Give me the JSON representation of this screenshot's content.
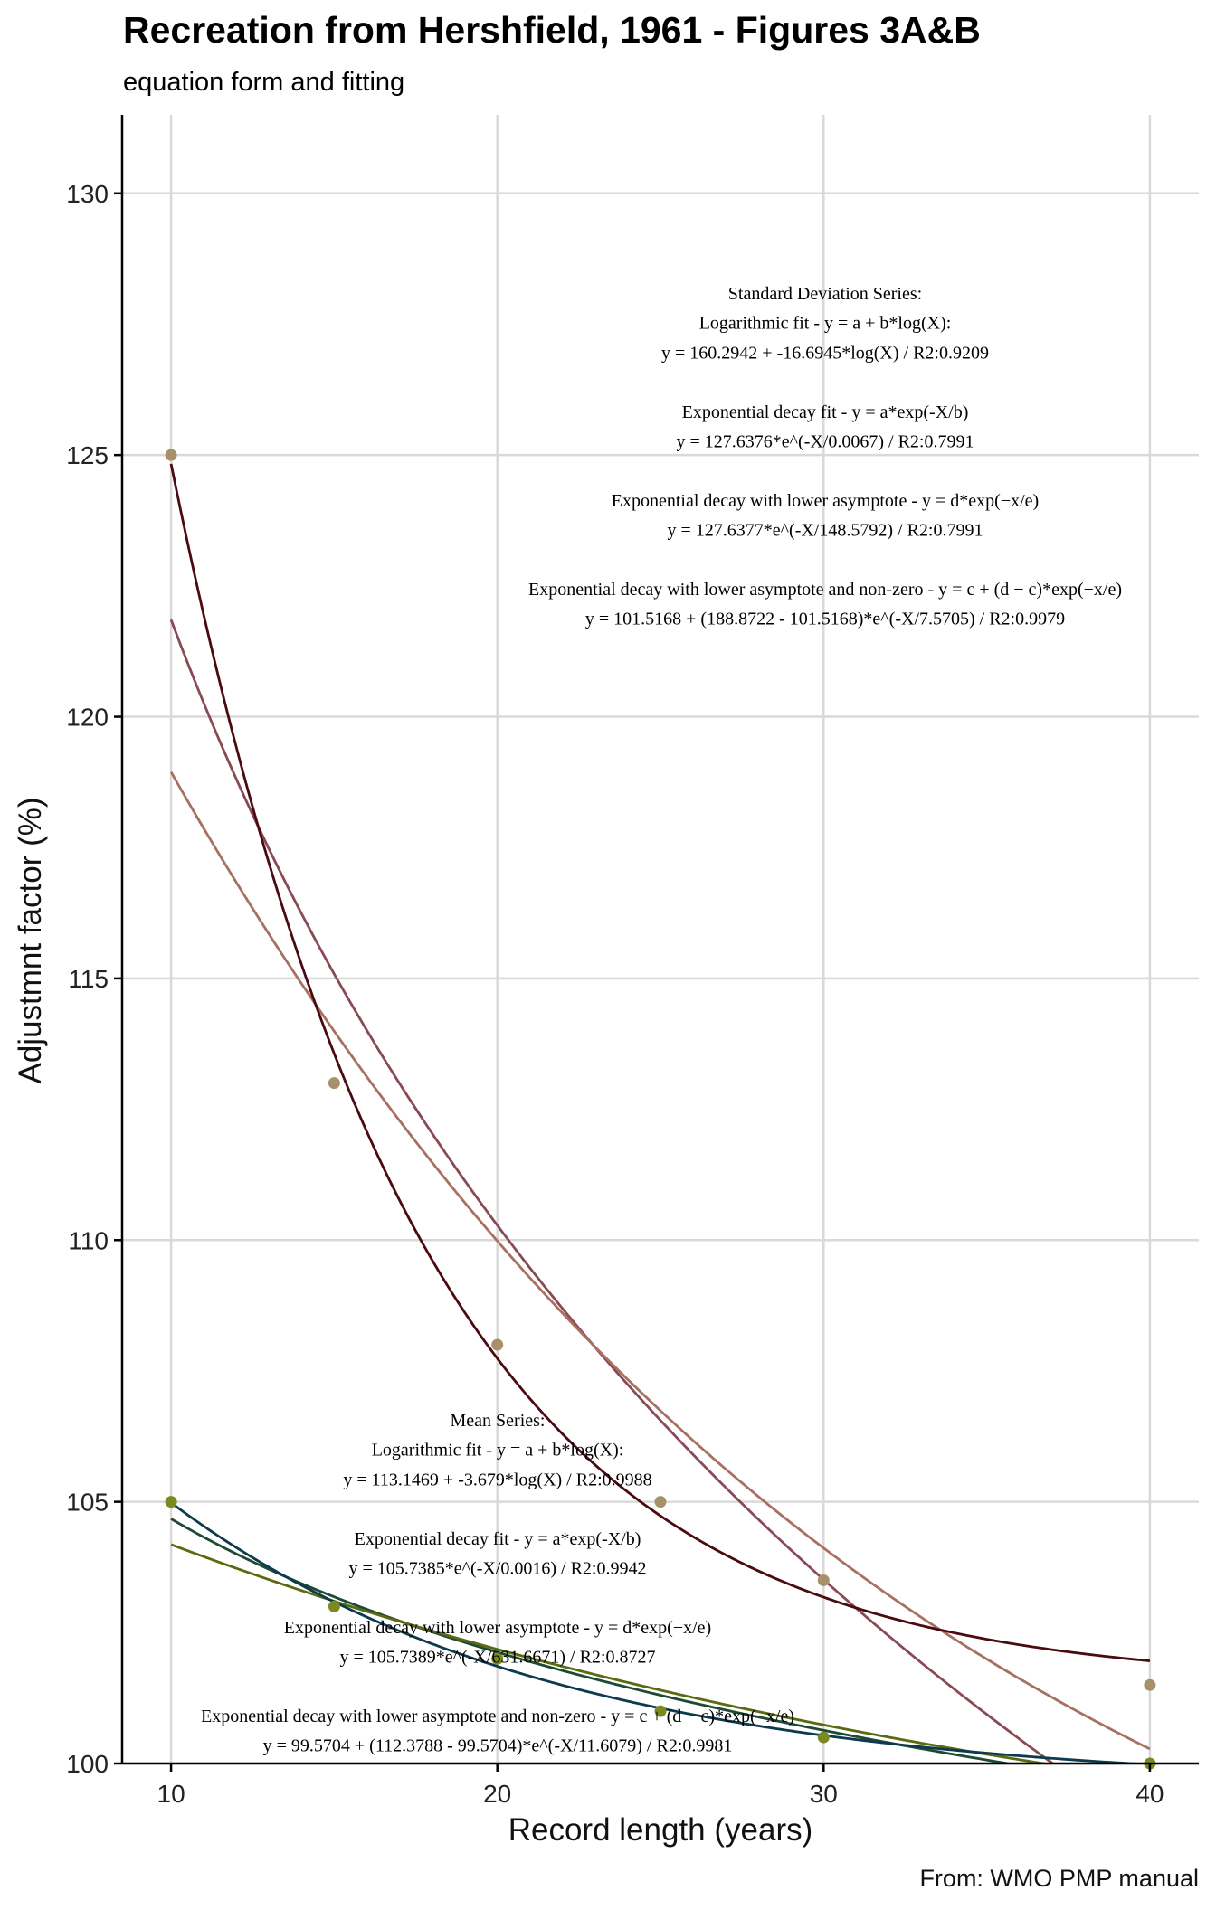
{
  "chart_data": {
    "type": "scatter",
    "title": "Recreation from Hershfield, 1961 - Figures 3A&B",
    "subtitle": "equation form and fitting",
    "xlabel": "Record length (years)",
    "ylabel": "Adjustmnt factor (%)",
    "caption": "From: WMO PMP manual",
    "xlim": [
      8.5,
      41.5
    ],
    "ylim": [
      100,
      131.5
    ],
    "x_ticks": [
      10,
      20,
      30,
      40
    ],
    "y_ticks": [
      100,
      105,
      110,
      115,
      120,
      125,
      130
    ],
    "grid": true,
    "legend": "none",
    "series": [
      {
        "group": "Standard Deviation Series",
        "color": "#a8906a",
        "points": {
          "x": [
            10,
            15,
            20,
            25,
            30,
            40
          ],
          "y": [
            125,
            113,
            108,
            105,
            103.5,
            101.5
          ]
        },
        "fits": [
          {
            "kind": "log",
            "color": "#8a4a55",
            "params": {
              "a": 160.2942,
              "b": -16.6945
            }
          },
          {
            "kind": "exp",
            "color": "#a87060",
            "params": {
              "a": 127.6376,
              "b": 0.0067
            }
          },
          {
            "kind": "asym_nonzero",
            "color": "#4a0a10",
            "params": {
              "c": 101.5168,
              "d": 188.8722,
              "e": 7.5705
            }
          }
        ]
      },
      {
        "group": "Mean Series",
        "color": "#7a8a20",
        "points": {
          "x": [
            10,
            15,
            20,
            25,
            30,
            40
          ],
          "y": [
            105,
            103,
            102,
            101,
            100.5,
            100
          ]
        },
        "fits": [
          {
            "kind": "log",
            "color": "#1e4a34",
            "params": {
              "a": 113.1469,
              "b": -3.679
            }
          },
          {
            "kind": "exp",
            "color": "#5a6a10",
            "params": {
              "a": 105.7385,
              "b": 0.0016
            }
          },
          {
            "kind": "asym_nonzero",
            "color": "#0e3a4e",
            "params": {
              "c": 99.5704,
              "d": 112.3788,
              "e": 11.6079
            }
          }
        ]
      }
    ],
    "annotations": {
      "sd": [
        "Standard Deviation Series:",
        "Logarithmic fit - y = a + b*log(X):",
        "y = 160.2942 + -16.6945*log(X) / R2:0.9209",
        "",
        "Exponential decay fit - y = a*exp(-X/b)",
        "y = 127.6376*e^(-X/0.0067) / R2:0.7991",
        "",
        "Exponential decay with lower asymptote - y = d*exp(−x/e)",
        "y = 127.6377*e^(-X/148.5792) / R2:0.7991",
        "",
        "Exponential decay with lower asymptote and non-zero - y = c + (d − c)*exp(−x/e)",
        "y = 101.5168 + (188.8722 - 101.5168)*e^(-X/7.5705) / R2:0.9979"
      ],
      "mean": [
        "Mean Series:",
        "Logarithmic fit - y = a + b*log(X):",
        "y = 113.1469 + -3.679*log(X) / R2:0.9988",
        "",
        "Exponential decay fit - y = a*exp(-X/b)",
        "y = 105.7385*e^(-X/0.0016) / R2:0.9942",
        "",
        "Exponential decay with lower asymptote - y = d*exp(−x/e)",
        "y = 105.7389*e^(-X/631.6671) / R2:0.8727",
        "",
        "Exponential decay with lower asymptote and non-zero - y = c + (d − c)*exp(−x/e)",
        "y = 99.5704 + (112.3788 - 99.5704)*e^(-X/11.6079) / R2:0.9981"
      ]
    }
  }
}
